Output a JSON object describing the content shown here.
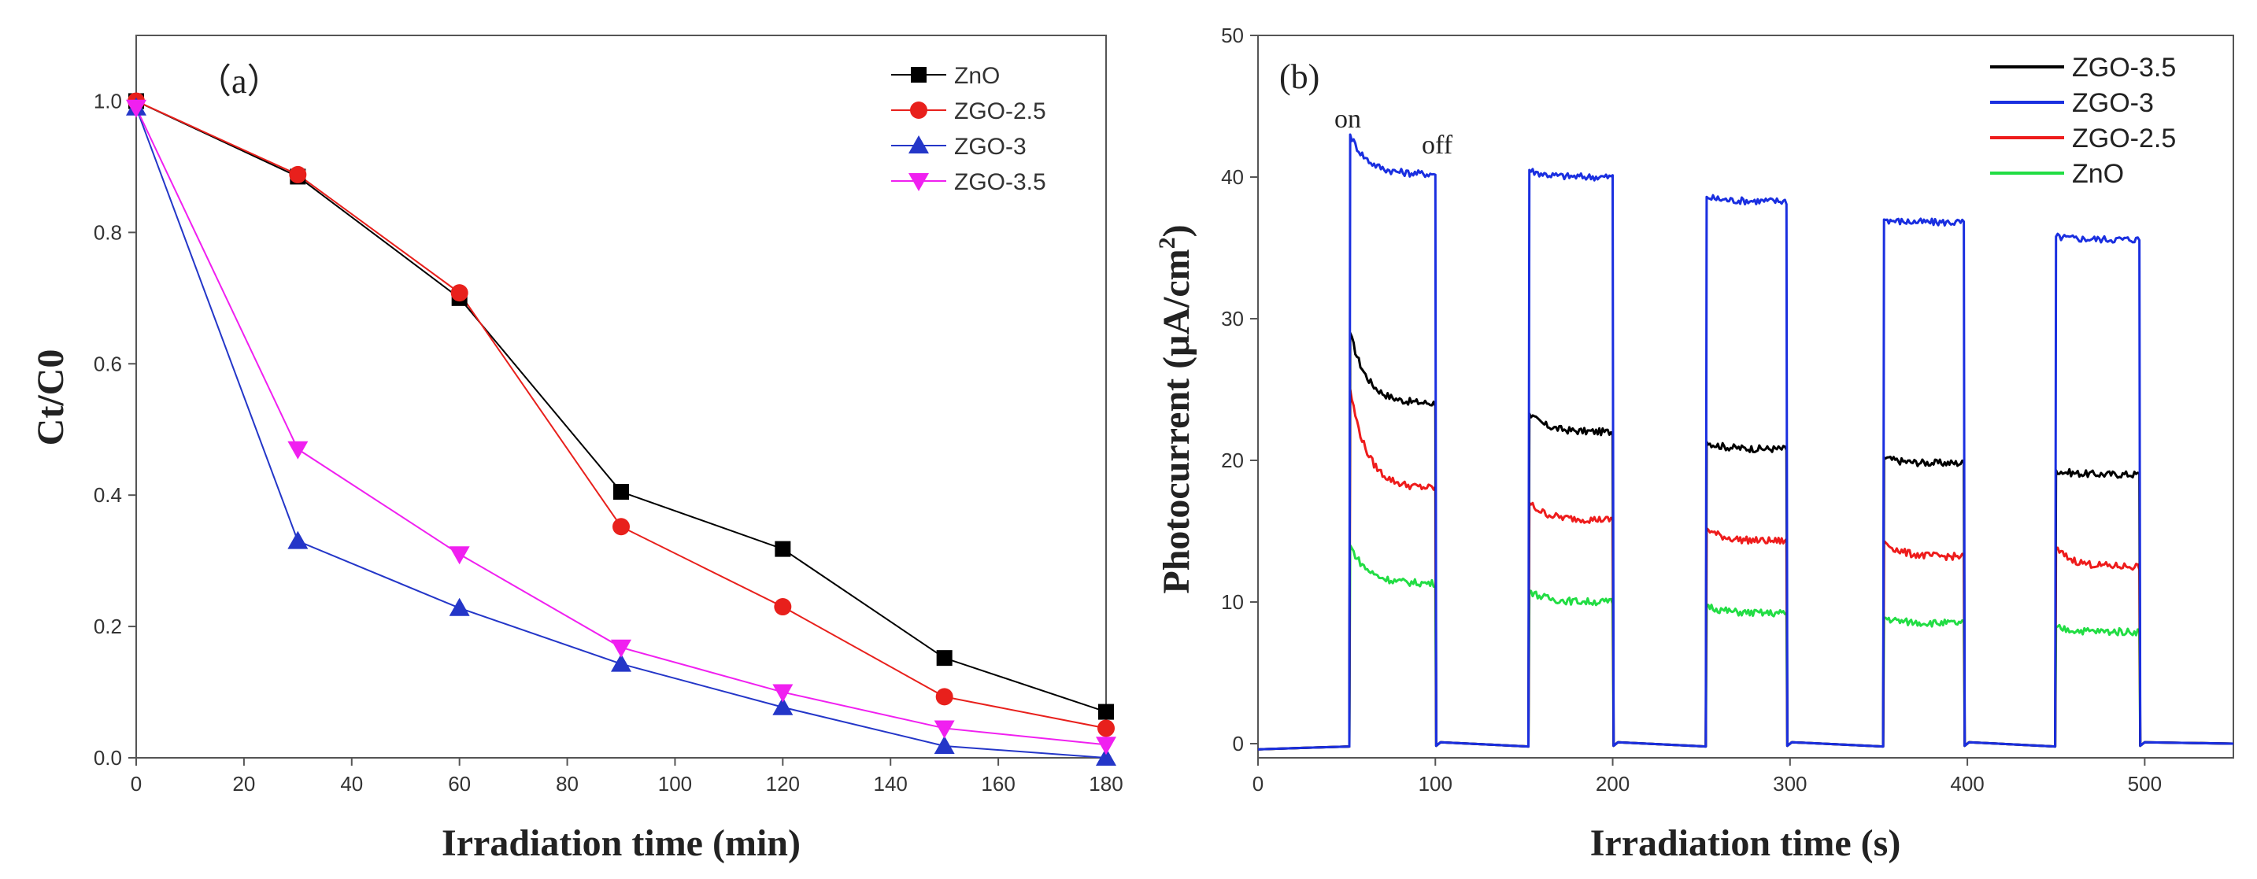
{
  "chart_data": [
    {
      "type": "line",
      "panel_label": "（a）",
      "xlabel": "Irradiation time (min)",
      "ylabel": "Ct/C0",
      "xlim": [
        0,
        180
      ],
      "ylim": [
        0,
        1.1
      ],
      "xticks": [
        "0",
        "20",
        "40",
        "60",
        "80",
        "100",
        "120",
        "140",
        "160",
        "180"
      ],
      "yticks": [
        "0.0",
        "0.2",
        "0.4",
        "0.6",
        "0.8",
        "1.0"
      ],
      "x": [
        0,
        30,
        60,
        90,
        120,
        150,
        180
      ],
      "legend_position": "top-right",
      "series": [
        {
          "name": "ZnO",
          "color": "#000000",
          "marker": "square",
          "values": [
            1.0,
            0.885,
            0.7,
            0.405,
            0.318,
            0.152,
            0.07
          ]
        },
        {
          "name": "ZGO-2.5",
          "color": "#e8201c",
          "marker": "circle",
          "values": [
            1.0,
            0.888,
            0.708,
            0.352,
            0.23,
            0.093,
            0.045
          ]
        },
        {
          "name": "ZGO-3",
          "color": "#2436c8",
          "marker": "triangle-up",
          "values": [
            0.99,
            0.33,
            0.228,
            0.143,
            0.077,
            0.018,
            0.0
          ]
        },
        {
          "name": "ZGO-3.5",
          "color": "#f020f0",
          "marker": "triangle-down",
          "values": [
            0.99,
            0.47,
            0.31,
            0.168,
            0.1,
            0.045,
            0.02
          ]
        }
      ]
    },
    {
      "type": "line",
      "panel_label": "(b)",
      "xlabel": "Irradiation time (s)",
      "ylabel": "Photocurrent",
      "ylabel_unit": "(μA/cm",
      "ylabel_sup": "2",
      "ylabel_close": ")",
      "xlim": [
        0,
        550
      ],
      "ylim": [
        -1,
        50
      ],
      "xticks": [
        "0",
        "100",
        "200",
        "300",
        "400",
        "500"
      ],
      "yticks": [
        "0",
        "10",
        "20",
        "30",
        "40",
        "50"
      ],
      "annotations": {
        "on": "on",
        "off": "off"
      },
      "light_on_intervals": [
        [
          52,
          100
        ],
        [
          153,
          200
        ],
        [
          253,
          298
        ],
        [
          353,
          398
        ],
        [
          450,
          497
        ]
      ],
      "legend_position": "top-right",
      "series": [
        {
          "name": "ZGO-3.5",
          "color": "#000000",
          "plateau_start": [
            29,
            23.3,
            21.3,
            20.2,
            19.3
          ],
          "plateau_end": [
            24.0,
            22.0,
            20.8,
            19.8,
            19.0
          ]
        },
        {
          "name": "ZGO-3",
          "color": "#1a2fe0",
          "plateau_start": [
            43,
            40.5,
            38.6,
            37.0,
            35.8
          ],
          "plateau_end": [
            40.2,
            40.0,
            38.3,
            36.8,
            35.6
          ]
        },
        {
          "name": "ZGO-2.5",
          "color": "#ee1c1c",
          "plateau_start": [
            25,
            17.0,
            15.2,
            14.3,
            13.8
          ],
          "plateau_end": [
            18.0,
            15.8,
            14.3,
            13.2,
            12.5
          ]
        },
        {
          "name": "ZnO",
          "color": "#22dd44",
          "plateau_start": [
            14,
            10.8,
            9.8,
            8.9,
            8.2
          ],
          "plateau_end": [
            11.3,
            10.0,
            9.2,
            8.5,
            7.9
          ]
        }
      ]
    }
  ]
}
